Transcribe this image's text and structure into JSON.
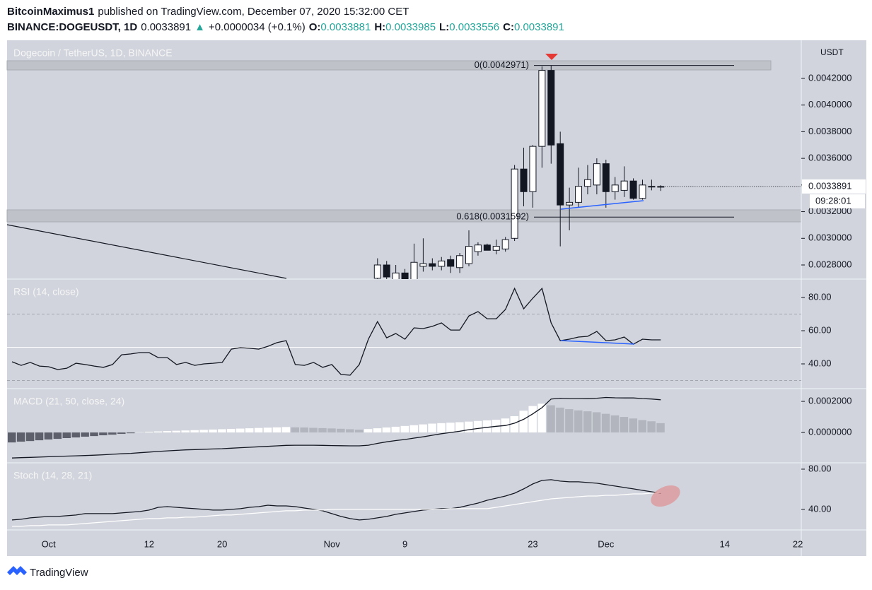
{
  "header": {
    "author": "BitcoinMaximus1",
    "published": "published on TradingView.com, December 07, 2020 15:32:00 CET",
    "symbol": "BINANCE:DOGEUSDT, 1D",
    "change": "+0.0000034 (+0.1%)",
    "ohlc_labels": [
      "O:",
      "H:",
      "L:",
      "C:"
    ]
  },
  "footer": {
    "brand": "TradingView"
  },
  "chart_data": [
    {
      "type": "candlestick",
      "title": "Dogecoin / TetherUS, 1D, BINANCE",
      "y_unit": "USDT",
      "countdown": "09:28:01",
      "categories": [
        null,
        null,
        null,
        null,
        "Oct",
        null,
        null,
        null,
        null,
        null,
        null,
        null,
        null,
        null,
        null,
        "12",
        null,
        null,
        null,
        null,
        null,
        null,
        null,
        "20",
        null,
        null,
        null,
        null,
        null,
        null,
        null,
        null,
        null,
        null,
        null,
        "Nov",
        null,
        null,
        null,
        null,
        null,
        null,
        null,
        "9",
        null,
        null,
        null,
        null,
        null,
        null,
        null,
        null,
        null,
        null,
        null,
        null,
        null,
        "23",
        null,
        null,
        null,
        null,
        null,
        null,
        null,
        "Dec",
        null,
        null,
        null,
        null,
        null,
        null,
        null,
        null,
        null,
        null,
        null,
        null,
        "14",
        null,
        null,
        null,
        null,
        null,
        null,
        null,
        "22"
      ],
      "open": [
        null,
        null,
        null,
        null,
        null,
        null,
        null,
        null,
        null,
        null,
        null,
        null,
        null,
        null,
        null,
        null,
        null,
        null,
        null,
        null,
        null,
        null,
        null,
        null,
        null,
        null,
        null,
        null,
        null,
        null,
        null,
        null,
        null,
        null,
        null,
        null,
        null,
        null,
        null,
        null,
        0.0027,
        0.0028,
        0.00269,
        0.00274,
        0.00269,
        0.00279,
        0.00281,
        0.00279,
        0.00284,
        0.00278,
        0.00281,
        0.0029,
        0.00295,
        0.00291,
        0.00292,
        0.003,
        0.00352,
        0.00335,
        0.00369,
        0.00426,
        0.00371,
        0.00325,
        0.00327,
        0.00339,
        0.0034,
        0.00356,
        0.00335,
        0.00336,
        0.00343,
        0.0033,
        0.00339,
        0.0033881,
        null,
        null,
        null,
        null,
        null,
        null,
        null,
        null,
        null,
        null,
        null,
        null,
        null,
        null,
        null
      ],
      "high": [
        null,
        null,
        null,
        null,
        null,
        null,
        null,
        null,
        null,
        null,
        null,
        null,
        null,
        null,
        null,
        null,
        null,
        null,
        null,
        null,
        null,
        null,
        null,
        null,
        null,
        null,
        null,
        null,
        null,
        null,
        null,
        null,
        null,
        null,
        null,
        null,
        null,
        null,
        null,
        null,
        0.00285,
        0.00283,
        0.0028,
        0.00277,
        0.00296,
        0.003,
        0.00285,
        0.00286,
        0.00287,
        0.00289,
        0.00306,
        0.00297,
        0.00296,
        0.00299,
        0.00301,
        0.00355,
        0.00368,
        0.0037,
        0.00429,
        0.0042971,
        0.0038,
        0.00338,
        0.00353,
        0.00355,
        0.0036,
        0.00359,
        0.00346,
        0.00354,
        0.00345,
        0.00344,
        0.00344,
        0.0033985,
        null,
        null,
        null,
        null,
        null,
        null,
        null,
        null,
        null,
        null,
        null,
        null,
        null,
        null,
        null
      ],
      "low": [
        null,
        null,
        null,
        null,
        null,
        null,
        null,
        null,
        null,
        null,
        null,
        null,
        null,
        null,
        null,
        null,
        null,
        null,
        null,
        null,
        null,
        null,
        null,
        null,
        null,
        null,
        null,
        null,
        null,
        null,
        null,
        null,
        null,
        null,
        null,
        null,
        null,
        null,
        null,
        null,
        0.00265,
        0.00265,
        0.00265,
        0.00263,
        0.00266,
        0.00275,
        0.00276,
        0.00276,
        0.00274,
        0.00274,
        0.00279,
        0.00287,
        0.00291,
        0.00288,
        0.0029,
        0.00298,
        0.00324,
        0.00323,
        0.00353,
        0.00356,
        0.00294,
        0.00306,
        0.00323,
        0.00333,
        0.00333,
        0.00323,
        0.00329,
        0.00331,
        0.00329,
        0.00329,
        0.00336,
        0.0033556,
        null,
        null,
        null,
        null,
        null,
        null,
        null,
        null,
        null,
        null,
        null,
        null,
        null,
        null,
        null
      ],
      "close": [
        null,
        null,
        null,
        null,
        null,
        null,
        null,
        null,
        null,
        null,
        null,
        null,
        null,
        null,
        null,
        null,
        null,
        null,
        null,
        null,
        null,
        null,
        null,
        null,
        null,
        null,
        null,
        null,
        null,
        null,
        null,
        null,
        null,
        null,
        null,
        null,
        null,
        null,
        null,
        null,
        0.0028,
        0.00271,
        0.00274,
        0.00269,
        0.00282,
        0.00281,
        0.00279,
        0.00283,
        0.00279,
        0.00287,
        0.00294,
        0.00295,
        0.00291,
        0.00294,
        0.00299,
        0.00352,
        0.00335,
        0.00369,
        0.00426,
        0.0037,
        0.00325,
        0.00327,
        0.00339,
        0.00344,
        0.00356,
        0.00335,
        0.0034,
        0.00343,
        0.0033,
        0.0034,
        0.00339,
        0.0033891,
        null,
        null,
        null,
        null,
        null,
        null,
        null,
        null,
        null,
        null,
        null,
        null,
        null,
        null,
        null
      ],
      "up_color": "#ffffff",
      "down_color": "#131722",
      "ylim": [
        0.002694,
        0.004486
      ],
      "yticks": [
        {
          "value": 0.0028,
          "label": "0.0028000"
        },
        {
          "value": 0.003,
          "label": "0.0030000"
        },
        {
          "value": 0.0032,
          "label": "0.0032000"
        },
        {
          "value": 0.0034,
          "label": "0.0034000"
        },
        {
          "value": 0.0036,
          "label": "0.0036000"
        },
        {
          "value": 0.0038,
          "label": "0.0038000"
        },
        {
          "value": 0.004,
          "label": "0.0040000"
        },
        {
          "value": 0.0042,
          "label": "0.0042000"
        }
      ],
      "fib_levels": [
        {
          "value": 0.0042971,
          "label": "0(0.0042971)"
        },
        {
          "value": 0.0031592,
          "label": "0.618(0.0031592)"
        }
      ]
    },
    {
      "type": "line",
      "title": "RSI (14, close)",
      "ylim": [
        25.1,
        91.1
      ],
      "yticks": [
        {
          "value": 40,
          "label": "40.00"
        },
        {
          "value": 60,
          "label": "60.00"
        },
        {
          "value": 80,
          "label": "80.00"
        }
      ],
      "levels": [
        30,
        50,
        70
      ],
      "series": [
        {
          "color": "#131722",
          "values": [
            41.3,
            39.1,
            40.9,
            38.7,
            38.3,
            36.6,
            37.4,
            40.4,
            39.6,
            38.7,
            37.9,
            39.6,
            45.5,
            46.0,
            46.8,
            46.8,
            43.8,
            43.8,
            39.6,
            40.9,
            39.1,
            40.0,
            40.4,
            40.9,
            48.9,
            49.8,
            49.4,
            48.9,
            50.6,
            52.8,
            54.0,
            39.6,
            39.1,
            40.9,
            37.9,
            39.6,
            33.6,
            33.2,
            39.6,
            54.9,
            65.5,
            55.7,
            58.3,
            54.9,
            61.7,
            61.3,
            62.6,
            64.7,
            60.4,
            60.4,
            68.9,
            71.5,
            67.2,
            67.2,
            72.8,
            85.5,
            73.2,
            79.6,
            85.5,
            64.7,
            54.0,
            54.9,
            56.2,
            56.6,
            59.6,
            54.0,
            54.5,
            56.2,
            51.9,
            54.9,
            54.5,
            54.5,
            null,
            null,
            null,
            null,
            null,
            null,
            null,
            null,
            null,
            null,
            null,
            null,
            null,
            null,
            null
          ]
        }
      ]
    },
    {
      "type": "macd",
      "title": "MACD (21, 50, close, 24)",
      "ylim": [
        -0.000195,
        0.000282
      ],
      "yticks": [
        {
          "value": 0,
          "label": "0.0000000"
        },
        {
          "value": 0.0002,
          "label": "0.0002000"
        }
      ],
      "histogram": {
        "colors": {
          "negative": "#5d606b",
          "rising": "#ffffff",
          "falling": "#b2b5be"
        },
        "values": [
          -6.4e-05,
          -5.9e-05,
          -5.5e-05,
          -5e-05,
          -4.5e-05,
          -4.1e-05,
          -3.6e-05,
          -3.2e-05,
          -2.7e-05,
          -2.3e-05,
          -1.8e-05,
          -1.4e-05,
          -9e-06,
          -5e-06,
          2e-06,
          5e-06,
          7e-06,
          9e-06,
          1.1e-05,
          1.3e-05,
          1.5e-05,
          1.7e-05,
          1.9e-05,
          2.1e-05,
          2.3e-05,
          2.5e-05,
          2.7e-05,
          2.9e-05,
          3.1e-05,
          3.3e-05,
          3.5e-05,
          3.3e-05,
          3.2e-05,
          3e-05,
          2.8e-05,
          2.6e-05,
          2.4e-05,
          2.1e-05,
          1.8e-05,
          2.2e-05,
          2.7e-05,
          3.2e-05,
          3.7e-05,
          4.2e-05,
          4.7e-05,
          5.2e-05,
          5.7e-05,
          6e-05,
          6.3e-05,
          6.6e-05,
          7e-05,
          7.4e-05,
          7.8e-05,
          8.2e-05,
          9e-05,
          0.000105,
          0.00014,
          0.00017,
          0.000185,
          0.000175,
          0.00016,
          0.00015,
          0.000142,
          0.000136,
          0.00013,
          0.00012,
          0.00011,
          0.0001,
          9e-05,
          8e-05,
          7.2e-05,
          6e-05,
          null,
          null,
          null,
          null,
          null,
          null,
          null,
          null,
          null,
          null,
          null,
          null,
          null,
          null,
          null
        ]
      },
      "macd": {
        "color": "#131722",
        "values": [
          -0.000164,
          -0.000162,
          -0.00016,
          -0.000158,
          -0.000156,
          -0.000154,
          -0.000152,
          -0.00015,
          -0.000148,
          -0.000146,
          -0.000143,
          -0.00014,
          -0.000137,
          -0.000134,
          -0.00013,
          -0.000126,
          -0.000122,
          -0.000118,
          -0.000115,
          -0.000112,
          -0.00011,
          -0.000108,
          -0.000106,
          -0.000104,
          -0.000101,
          -9.8e-05,
          -9.5e-05,
          -9.2e-05,
          -8.9e-05,
          -8.6e-05,
          -8.3e-05,
          -8.2e-05,
          -8.2e-05,
          -8.2e-05,
          -8.3e-05,
          -8.4e-05,
          -8.5e-05,
          -8.6e-05,
          -8.6e-05,
          -8.2e-05,
          -7e-05,
          -6e-05,
          -5.2e-05,
          -4.5e-05,
          -3.6e-05,
          -2.8e-05,
          -1.8e-05,
          -8e-06,
          0.0,
          8e-06,
          1.8e-05,
          2.6e-05,
          3.3e-05,
          4e-05,
          4.5e-05,
          6e-05,
          8.5e-05,
          0.00012,
          0.00016,
          0.000215,
          0.00022,
          0.000218,
          0.000218,
          0.000217,
          0.00022,
          0.000225,
          0.000223,
          0.000222,
          0.000222,
          0.000218,
          0.000215,
          0.00021,
          null,
          null,
          null,
          null,
          null,
          null,
          null,
          null,
          null,
          null,
          null,
          null,
          null,
          null,
          null
        ]
      }
    },
    {
      "type": "line",
      "title": "Stoch (14, 28, 21)",
      "ylim": [
        19.6,
        86.3
      ],
      "yticks": [
        {
          "value": 40,
          "label": "40.00"
        },
        {
          "value": 80,
          "label": "80.00"
        }
      ],
      "series": [
        {
          "color": "#131722",
          "values": [
            29.5,
            30.2,
            31.6,
            32.3,
            33.0,
            33.0,
            33.7,
            34.4,
            35.8,
            35.8,
            35.8,
            35.8,
            36.5,
            37.2,
            37.9,
            39.3,
            42.1,
            42.8,
            42.1,
            41.4,
            40.7,
            40.0,
            39.3,
            39.3,
            40.0,
            40.7,
            42.1,
            42.8,
            44.2,
            43.5,
            43.5,
            42.8,
            41.4,
            40.0,
            38.6,
            35.8,
            33.0,
            30.9,
            29.5,
            30.2,
            31.6,
            33.0,
            35.1,
            36.5,
            37.9,
            39.3,
            40.0,
            40.7,
            40.7,
            42.1,
            44.2,
            46.3,
            49.1,
            51.2,
            53.3,
            56.1,
            60.4,
            65.3,
            68.8,
            69.5,
            68.1,
            67.4,
            67.4,
            66.7,
            66.0,
            64.6,
            63.2,
            61.8,
            60.4,
            58.9,
            57.5,
            56.1,
            null,
            null,
            null,
            null,
            null,
            null,
            null,
            null,
            null,
            null,
            null,
            null,
            null,
            null,
            null
          ]
        },
        {
          "color": "#ffffff",
          "values": [
            23.2,
            23.2,
            23.9,
            23.9,
            24.6,
            24.6,
            24.6,
            25.3,
            26.0,
            26.7,
            27.4,
            28.1,
            28.8,
            29.5,
            30.2,
            30.9,
            30.9,
            31.6,
            31.6,
            32.3,
            32.3,
            33.0,
            33.7,
            34.4,
            34.4,
            35.1,
            35.8,
            36.5,
            37.2,
            37.9,
            38.6,
            38.6,
            39.3,
            39.3,
            39.3,
            40.0,
            40.0,
            40.0,
            40.0,
            40.0,
            40.0,
            40.0,
            40.0,
            40.0,
            40.0,
            40.0,
            40.0,
            40.0,
            40.7,
            40.7,
            40.7,
            40.7,
            40.7,
            42.1,
            43.5,
            44.9,
            46.3,
            47.7,
            49.1,
            50.5,
            51.2,
            51.9,
            52.6,
            53.3,
            53.3,
            54.0,
            54.0,
            54.7,
            55.4,
            55.4,
            56.1,
            56.8,
            null,
            null,
            null,
            null,
            null,
            null,
            null,
            null,
            null,
            null,
            null,
            null,
            null,
            null,
            null
          ]
        }
      ]
    }
  ]
}
